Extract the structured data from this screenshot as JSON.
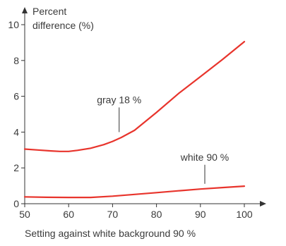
{
  "chart_data": {
    "type": "line",
    "title": "",
    "xlabel": "Setting against white background 90 %",
    "ylabel": "Percent difference (%)",
    "ylabel_lines": [
      "Percent",
      "difference (%)"
    ],
    "xlim": [
      50,
      110
    ],
    "ylim": [
      0,
      10.6
    ],
    "x_ticks": [
      50,
      60,
      70,
      80,
      90,
      100
    ],
    "y_ticks": [
      0,
      2,
      4,
      6,
      8,
      10
    ],
    "grid": false,
    "series": [
      {
        "name": "gray 18 %",
        "color": "#e8342c",
        "x": [
          50,
          53,
          56,
          58,
          60,
          62,
          65,
          68,
          70,
          72,
          75,
          80,
          85,
          90,
          95,
          100
        ],
        "y": [
          3.05,
          3.0,
          2.95,
          2.92,
          2.92,
          2.98,
          3.1,
          3.3,
          3.48,
          3.7,
          4.1,
          5.1,
          6.15,
          7.1,
          8.05,
          9.05
        ]
      },
      {
        "name": "white 90 %",
        "color": "#e8342c",
        "x": [
          50,
          55,
          60,
          65,
          70,
          75,
          80,
          85,
          90,
          95,
          100
        ],
        "y": [
          0.38,
          0.36,
          0.35,
          0.35,
          0.42,
          0.52,
          0.62,
          0.72,
          0.82,
          0.9,
          0.98
        ]
      }
    ],
    "annotations": [
      {
        "text": "gray 18 %",
        "series": 0,
        "x": 71.5
      },
      {
        "text": "white 90 %",
        "series": 1,
        "x": 91
      }
    ]
  }
}
